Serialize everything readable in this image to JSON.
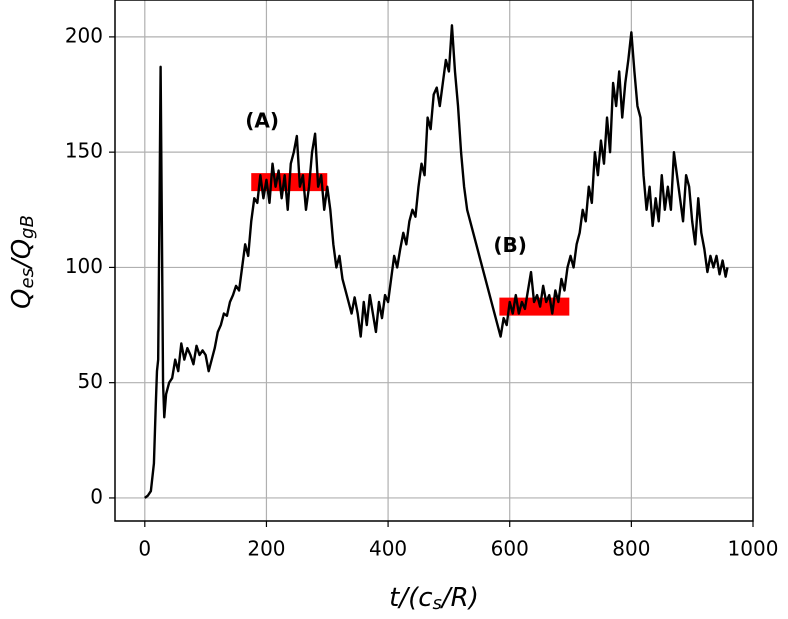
{
  "chart_data": {
    "type": "line",
    "xlabel": [
      "t/(c",
      "s",
      "/R)"
    ],
    "ylabel": [
      "Q",
      "es",
      "/Q",
      "gB"
    ],
    "xlim": [
      -49,
      1000
    ],
    "ylim": [
      -10,
      216
    ],
    "xticks": [
      0,
      200,
      400,
      600,
      800,
      1000
    ],
    "yticks": [
      0,
      50,
      100,
      150,
      200
    ],
    "grid": true,
    "series": [
      {
        "color": "#000000",
        "x": [
          0,
          5,
          10,
          15,
          18,
          20,
          22,
          24,
          26,
          28,
          30,
          32,
          35,
          40,
          45,
          50,
          55,
          60,
          65,
          70,
          75,
          80,
          85,
          90,
          95,
          100,
          105,
          110,
          115,
          120,
          125,
          130,
          135,
          140,
          145,
          150,
          155,
          160,
          165,
          170,
          175,
          180,
          185,
          190,
          195,
          200,
          205,
          210,
          215,
          220,
          225,
          230,
          235,
          240,
          245,
          250,
          255,
          260,
          265,
          270,
          275,
          280,
          285,
          290,
          295,
          300,
          305,
          310,
          315,
          320,
          325,
          330,
          335,
          340,
          345,
          350,
          355,
          360,
          365,
          370,
          375,
          380,
          385,
          390,
          395,
          400,
          405,
          410,
          415,
          420,
          425,
          430,
          435,
          440,
          445,
          450,
          455,
          460,
          465,
          470,
          475,
          480,
          485,
          490,
          495,
          500,
          505,
          510,
          515,
          520,
          525,
          530,
          535,
          540,
          545,
          550,
          555,
          560,
          565,
          570,
          575,
          580,
          585,
          590,
          595,
          600,
          605,
          610,
          615,
          620,
          625,
          630,
          635,
          640,
          645,
          650,
          655,
          660,
          665,
          670,
          675,
          680,
          685,
          690,
          695,
          700,
          705,
          710,
          715,
          720,
          725,
          730,
          735,
          740,
          745,
          750,
          755,
          760,
          765,
          770,
          775,
          780,
          785,
          790,
          795,
          800,
          805,
          810,
          815,
          820,
          825,
          830,
          835,
          840,
          845,
          850,
          855,
          860,
          865,
          870,
          875,
          880,
          885,
          890,
          895,
          900,
          905,
          910,
          915,
          920,
          925,
          930,
          935,
          940,
          945,
          950,
          955,
          958
        ],
        "values": [
          0,
          1,
          3,
          15,
          40,
          55,
          60,
          120,
          187,
          120,
          50,
          35,
          45,
          50,
          52,
          60,
          55,
          67,
          60,
          65,
          62,
          58,
          66,
          62,
          64,
          62,
          55,
          60,
          65,
          72,
          75,
          80,
          79,
          85,
          88,
          92,
          90,
          100,
          110,
          105,
          120,
          130,
          128,
          140,
          130,
          138,
          128,
          145,
          135,
          142,
          130,
          140,
          125,
          145,
          150,
          157,
          135,
          140,
          125,
          135,
          150,
          158,
          135,
          140,
          125,
          135,
          125,
          110,
          100,
          105,
          95,
          90,
          85,
          80,
          87,
          80,
          70,
          85,
          75,
          88,
          80,
          72,
          85,
          78,
          88,
          85,
          95,
          105,
          100,
          108,
          115,
          110,
          120,
          125,
          122,
          135,
          145,
          140,
          165,
          160,
          175,
          178,
          170,
          180,
          190,
          185,
          205,
          185,
          170,
          150,
          135,
          125,
          120,
          115,
          110,
          105,
          100,
          95,
          90,
          85,
          80,
          75,
          70,
          78,
          75,
          85,
          80,
          88,
          80,
          85,
          82,
          90,
          98,
          85,
          88,
          83,
          92,
          85,
          88,
          80,
          90,
          85,
          95,
          90,
          100,
          105,
          100,
          110,
          115,
          125,
          120,
          135,
          128,
          150,
          140,
          155,
          145,
          165,
          150,
          180,
          170,
          185,
          165,
          180,
          190,
          202,
          185,
          170,
          165,
          140,
          125,
          135,
          118,
          130,
          120,
          140,
          125,
          135,
          125,
          150,
          140,
          130,
          120,
          140,
          135,
          120,
          110,
          130,
          115,
          108,
          98,
          105,
          100,
          105,
          97,
          103,
          96,
          100
        ]
      }
    ],
    "bands": [
      {
        "label": "(A)",
        "x": [
          175,
          300
        ],
        "y": 137,
        "color": "#ff0000"
      },
      {
        "label": "(B)",
        "x": [
          583,
          698
        ],
        "y": 83,
        "color": "#ff0000"
      }
    ]
  }
}
